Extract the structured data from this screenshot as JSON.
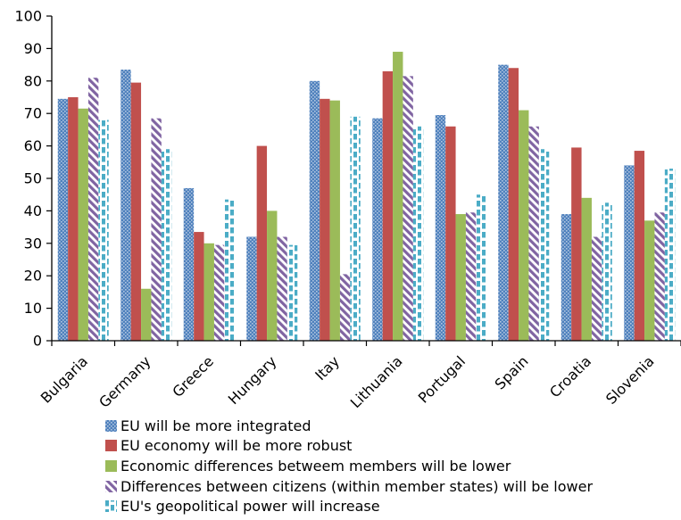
{
  "chart_data": {
    "type": "bar",
    "categories": [
      "Bulgaria",
      "Germany",
      "Greece",
      "Hungary",
      "Itay",
      "Lithuania",
      "Portugal",
      "Spain",
      "Croatia",
      "Slovenia"
    ],
    "series": [
      {
        "name": "EU will be more integrated",
        "color": "#4f81bd",
        "pattern": "dots",
        "values": [
          74.5,
          83.5,
          47,
          32,
          80,
          68.5,
          69.5,
          85,
          39,
          54
        ]
      },
      {
        "name": "EU economy will be more robust",
        "color": "#c0504d",
        "pattern": "solid",
        "values": [
          75,
          79.5,
          33.5,
          60,
          74.5,
          83,
          66,
          84,
          59.5,
          58.5
        ]
      },
      {
        "name": "Economic differences betweem members will be lower",
        "color": "#9bbb59",
        "pattern": "solid",
        "values": [
          71.5,
          16,
          30,
          40,
          74,
          89,
          39,
          71,
          44,
          37
        ]
      },
      {
        "name": "Differences between citizens (within member states) will be lower",
        "color": "#8064a2",
        "pattern": "diagonal",
        "values": [
          81,
          68.5,
          29.5,
          32,
          20.5,
          81.5,
          39.5,
          66,
          32,
          39.5
        ]
      },
      {
        "name": "EU's geopolitical power will increase",
        "color": "#4bacc6",
        "pattern": "dashed",
        "values": [
          68,
          59,
          43.5,
          29.5,
          69,
          66,
          45,
          59,
          42.5,
          53
        ]
      }
    ],
    "ylim": [
      0,
      100
    ],
    "yticks": [
      0,
      10,
      20,
      30,
      40,
      50,
      60,
      70,
      80,
      90,
      100
    ],
    "grid": false,
    "legend_position": "bottom"
  }
}
